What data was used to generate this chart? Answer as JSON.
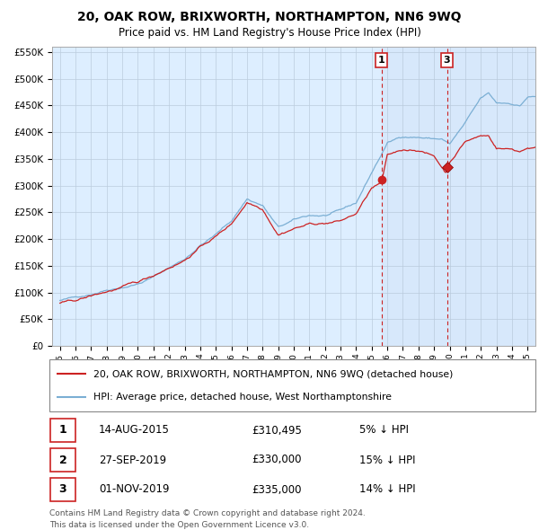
{
  "title": "20, OAK ROW, BRIXWORTH, NORTHAMPTON, NN6 9WQ",
  "subtitle": "Price paid vs. HM Land Registry's House Price Index (HPI)",
  "ylim": [
    0,
    560000
  ],
  "yticks": [
    0,
    50000,
    100000,
    150000,
    200000,
    250000,
    300000,
    350000,
    400000,
    450000,
    500000,
    550000
  ],
  "ytick_labels": [
    "£0",
    "£50K",
    "£100K",
    "£150K",
    "£200K",
    "£250K",
    "£300K",
    "£350K",
    "£400K",
    "£450K",
    "£500K",
    "£550K"
  ],
  "xtick_years": [
    1995,
    1996,
    1997,
    1998,
    1999,
    2000,
    2001,
    2002,
    2003,
    2004,
    2005,
    2006,
    2007,
    2008,
    2009,
    2010,
    2011,
    2012,
    2013,
    2014,
    2015,
    2016,
    2017,
    2018,
    2019,
    2020,
    2021,
    2022,
    2023,
    2024,
    2025
  ],
  "hpi_color": "#7bafd4",
  "price_color": "#cc2222",
  "background_color": "#ddeeff",
  "grid_color": "#bbccdd",
  "sale1_date": 2015.62,
  "sale1_price": 310495,
  "sale2_date": 2019.74,
  "sale2_price": 330000,
  "sale3_date": 2019.83,
  "sale3_price": 335000,
  "vline1_x": 2015.62,
  "vline2_x": 2019.83,
  "legend_line1": "20, OAK ROW, BRIXWORTH, NORTHAMPTON, NN6 9WQ (detached house)",
  "legend_line2": "HPI: Average price, detached house, West Northamptonshire",
  "table_rows": [
    {
      "num": "1",
      "date": "14-AUG-2015",
      "price": "£310,495",
      "pct": "5% ↓ HPI"
    },
    {
      "num": "2",
      "date": "27-SEP-2019",
      "price": "£330,000",
      "pct": "15% ↓ HPI"
    },
    {
      "num": "3",
      "date": "01-NOV-2019",
      "price": "£335,000",
      "pct": "14% ↓ HPI"
    }
  ],
  "footnote1": "Contains HM Land Registry data © Crown copyright and database right 2024.",
  "footnote2": "This data is licensed under the Open Government Licence v3.0."
}
